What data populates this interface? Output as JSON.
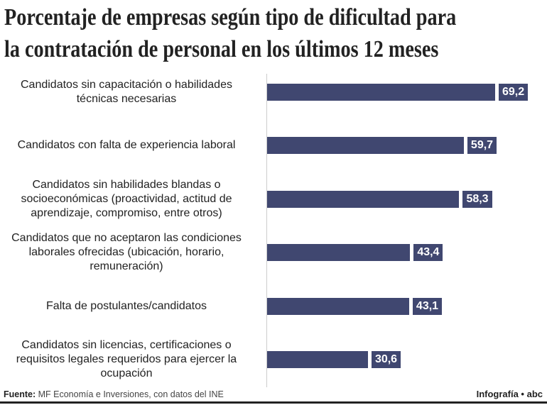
{
  "chart_data": {
    "type": "bar",
    "orientation": "horizontal",
    "title": "Porcentaje de empresas según tipo de dificultad para la contratación de personal en los últimos 12 meses",
    "title_lines": [
      "Porcentaje de empresas según tipo de dificultad para",
      "la contratación de personal en los últimos 12 meses"
    ],
    "categories": [
      [
        "Candidatos sin capacitación o habilidades",
        "técnicas necesarias"
      ],
      [
        "Candidatos con falta de experiencia laboral"
      ],
      [
        "Candidatos sin habilidades blandas o",
        "socioeconómicas (proactividad, actitud de",
        "aprendizaje, compromiso, entre otros)"
      ],
      [
        "Candidatos que no aceptaron las condiciones",
        "laborales ofrecidas (ubicación, horario,",
        "remuneración)"
      ],
      [
        "Falta de postulantes/candidatos"
      ],
      [
        "Candidatos sin licencias, certificaciones o",
        "requisitos legales requeridos para ejercer la",
        "ocupación"
      ]
    ],
    "values": [
      69.2,
      59.7,
      58.3,
      43.4,
      43.1,
      30.6
    ],
    "value_labels": [
      "69,2",
      "59,7",
      "58,3",
      "43,4",
      "43,1",
      "30,6"
    ],
    "xlim": [
      0,
      75
    ],
    "grid": false,
    "bar_color": "#404770"
  },
  "footer": {
    "source_label": "Fuente:",
    "source_text": " MF Economía e Inversiones, con datos del INE",
    "credit": "Infografía • abc"
  }
}
